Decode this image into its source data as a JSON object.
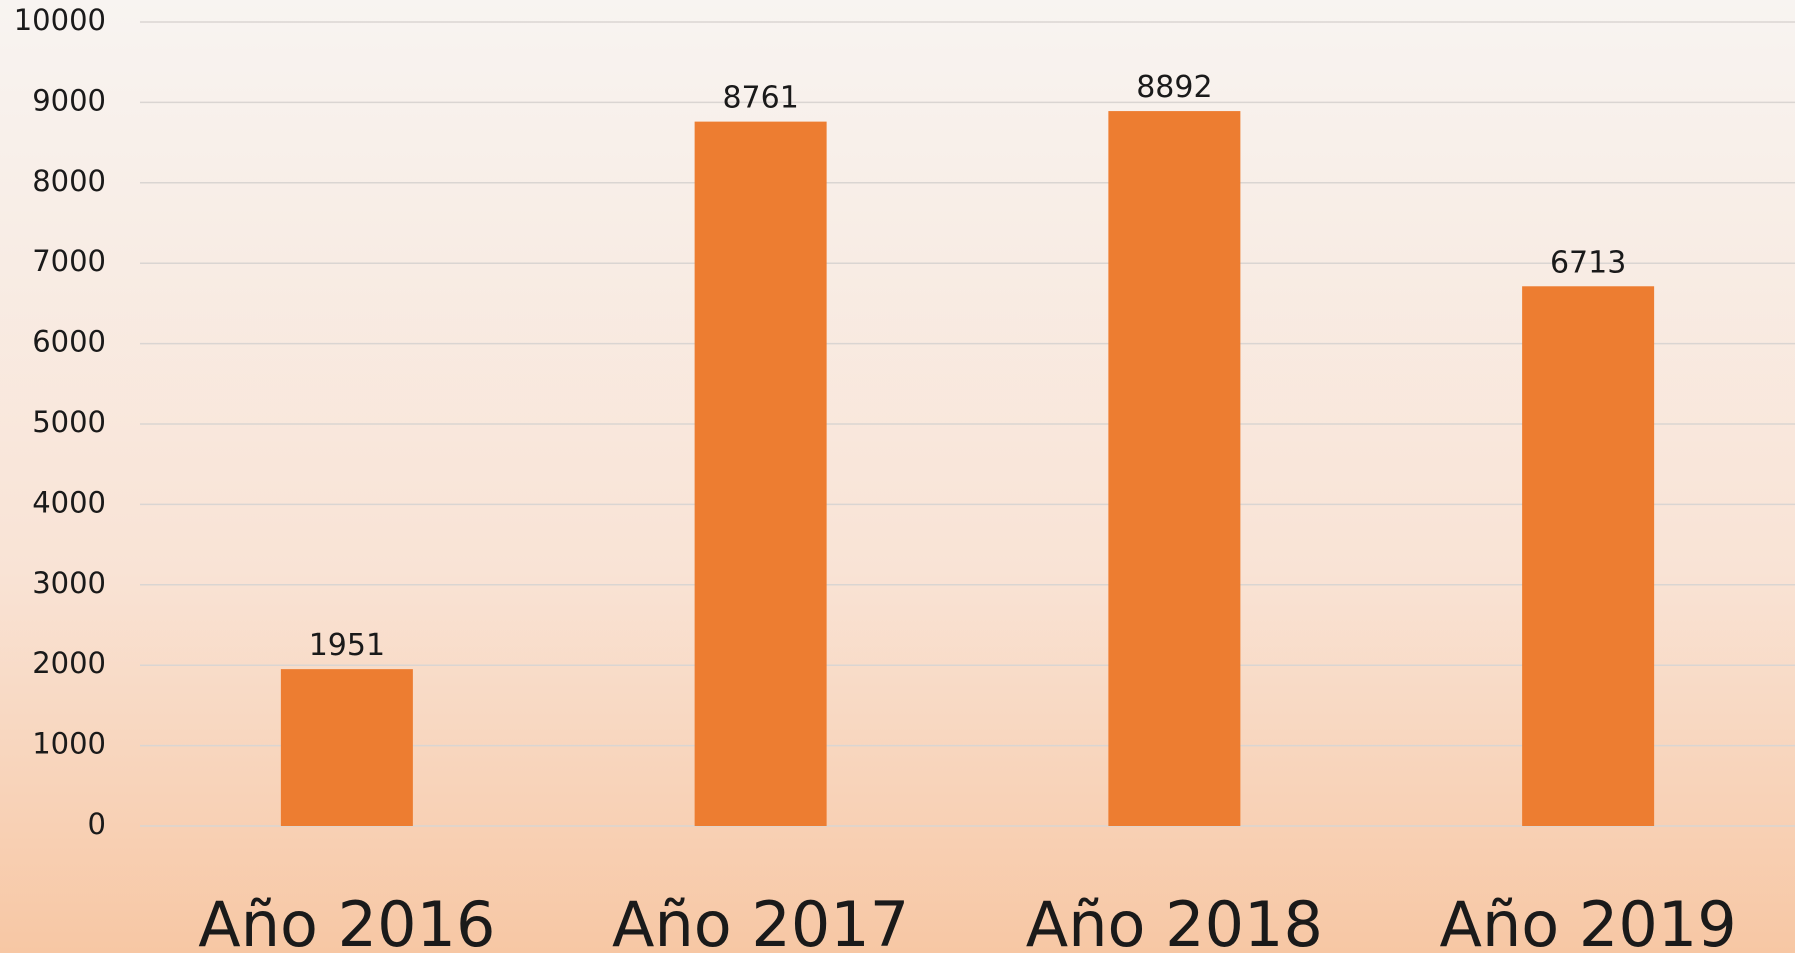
{
  "chart_data": {
    "type": "bar",
    "categories": [
      "Año 2016",
      "Año 2017",
      "Año 2018",
      "Año 2019"
    ],
    "values": [
      1951,
      8761,
      8892,
      6713
    ],
    "color": "#ed7d31",
    "ylim": [
      0,
      10000
    ],
    "yticks": [
      0,
      1000,
      2000,
      3000,
      4000,
      5000,
      6000,
      7000,
      8000,
      9000,
      10000
    ],
    "grid": true
  }
}
